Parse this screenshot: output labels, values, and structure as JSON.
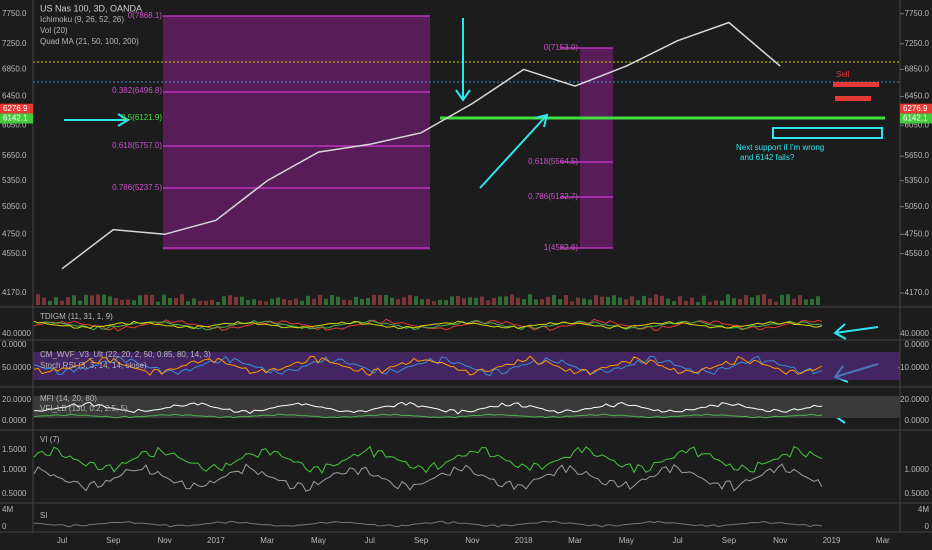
{
  "header": {
    "title": "US Nas 100, 3D, OANDA",
    "indicators": [
      "Ichimoku (9, 26, 52, 26)",
      "Vol (20)",
      "Quad MA (21, 50, 100, 200)"
    ]
  },
  "chart_data": {
    "type": "line",
    "log_scale": true,
    "color": "#d8d8d8",
    "categories": [
      "Jul",
      "Sep",
      "Nov",
      "2017",
      "Mar",
      "May",
      "Jul",
      "Sep",
      "Nov",
      "2018",
      "Mar",
      "May",
      "Jul",
      "Sep",
      "Nov",
      "2019",
      "Mar"
    ],
    "values": [
      4400,
      4800,
      4750,
      4900,
      5350,
      5700,
      5800,
      5950,
      6350,
      6850,
      6600,
      6900,
      7300,
      7600,
      6900,
      null,
      null
    ],
    "ylim": [
      4060,
      7990
    ],
    "yticks": [
      {
        "value": 7750,
        "label": "7750.0"
      },
      {
        "value": 7250,
        "label": "7250.0"
      },
      {
        "value": 6850,
        "label": "6850.0"
      },
      {
        "value": 6450,
        "label": "6450.0"
      },
      {
        "value": 6050,
        "label": "6050.0"
      },
      {
        "value": 5650,
        "label": "5650.0"
      },
      {
        "value": 5350,
        "label": "5350.0"
      },
      {
        "value": 5050,
        "label": "5050.0"
      },
      {
        "value": 4750,
        "label": "4750.0"
      },
      {
        "value": 4550,
        "label": "4550.0"
      },
      {
        "value": 4170,
        "label": "4170.0"
      }
    ],
    "price_tags": [
      {
        "value": 6276.9,
        "label": "6276.9",
        "color": "#e53935"
      },
      {
        "value": 6142.1,
        "label": "6142.1",
        "color": "#43c93a"
      }
    ],
    "fib_labels": [
      "0(7868.1)",
      "0.382(6496.8)",
      "0.5(6121.9)",
      "0.618(5757.0)",
      "0.786(5237.5)",
      "0(7153.0)",
      "0.618(5564.5)",
      "0.786(5132.7)",
      "1(4582.6)"
    ],
    "annotations": [
      "Sell",
      "Next support if I'm wrong",
      "and 6142 fails?"
    ]
  },
  "panels": [
    {
      "labels": [
        "TDIGM (11, 31, 1, 9)"
      ],
      "left_ticks": [
        "40.0000"
      ],
      "right_ticks": [
        "40.0000"
      ]
    },
    {
      "labels": [
        "CM_WVF_V3_Ult (22, 20, 2, 50, 0.85, 80, 14, 3)",
        "Stoch RSI (3, 3, 14, 14, close)"
      ],
      "left_ticks": [
        "0.0000",
        "50.0000"
      ],
      "right_ticks": [
        "0.0000",
        "-10.0000"
      ]
    },
    {
      "labels": [
        "MFI (14, 20, 80)",
        "VFI_LB (130, 0.2, 2.5, 5)"
      ],
      "left_ticks": [
        "20.0000",
        "0.0000"
      ],
      "right_ticks": [
        "20.0000",
        "0.0000"
      ]
    },
    {
      "labels": [
        "VI (7)"
      ],
      "left_ticks": [
        "1.5000",
        "1.0000",
        "0.5000"
      ],
      "right_ticks": [
        "1.0000",
        "0.5000"
      ]
    },
    {
      "labels": [
        "SI"
      ],
      "left_ticks": [
        "4M",
        "0"
      ],
      "right_ticks": [
        "4M",
        "0"
      ]
    }
  ]
}
